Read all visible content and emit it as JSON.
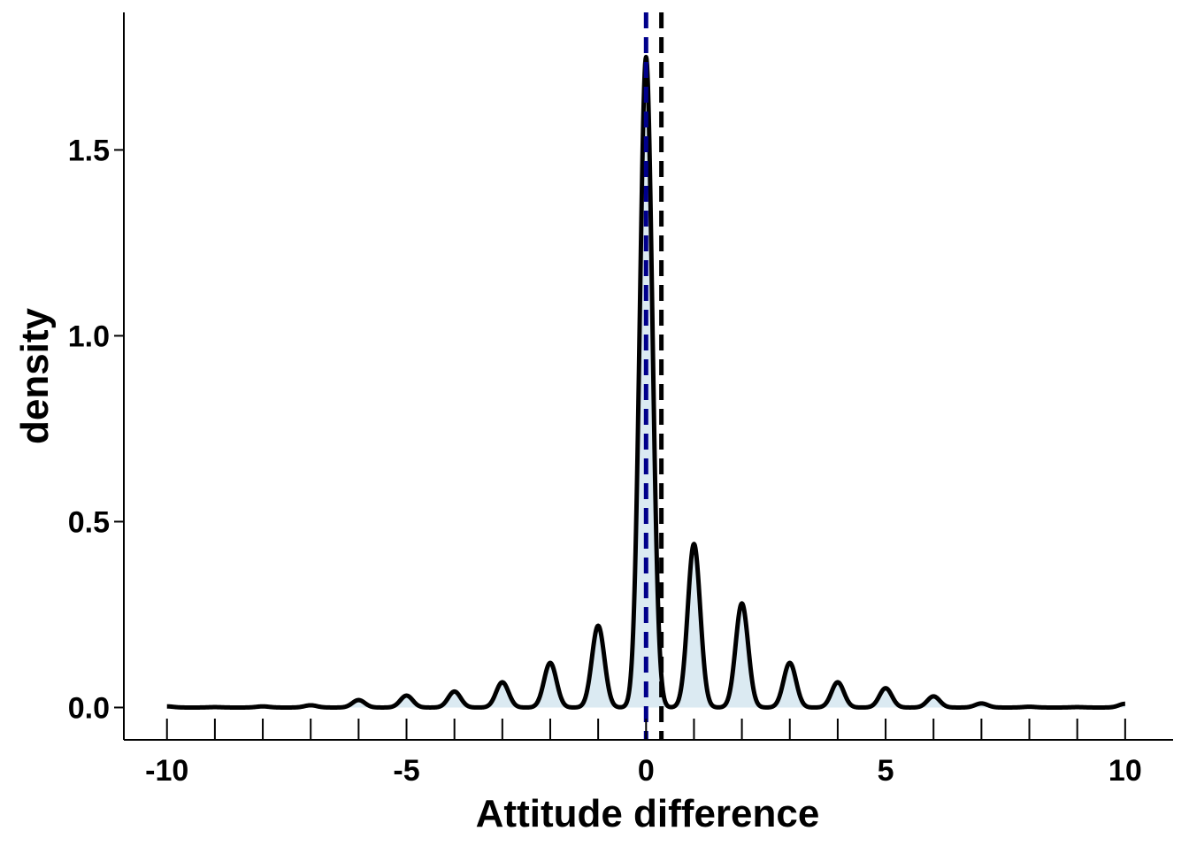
{
  "chart_data": {
    "type": "area",
    "title": "",
    "xlabel": "Attitude difference",
    "ylabel": "density",
    "xlim": [
      -10.9,
      11
    ],
    "ylim": [
      -0.087,
      1.87
    ],
    "x_ticks": [
      -10,
      -5,
      0,
      5,
      10
    ],
    "x_tick_labels": [
      "-10",
      "-5",
      "0",
      "5",
      "10"
    ],
    "x_minor_ticks": [
      -10,
      -9,
      -8,
      -7,
      -6,
      -5,
      -4,
      -3,
      -2,
      -1,
      0,
      1,
      2,
      3,
      4,
      5,
      6,
      7,
      8,
      9,
      10
    ],
    "y_ticks": [
      0.0,
      0.5,
      1.0,
      1.5
    ],
    "y_tick_labels": [
      "0.0",
      "0.5",
      "1.0",
      "1.5"
    ],
    "grid": false,
    "legend": "none",
    "series": [
      {
        "peaks": [
          {
            "x": -10,
            "y": 0.003
          },
          {
            "x": -9,
            "y": 0.001
          },
          {
            "x": -8,
            "y": 0.003
          },
          {
            "x": -7,
            "y": 0.006
          },
          {
            "x": -6,
            "y": 0.02
          },
          {
            "x": -5,
            "y": 0.032
          },
          {
            "x": -4,
            "y": 0.043
          },
          {
            "x": -3,
            "y": 0.068
          },
          {
            "x": -2,
            "y": 0.12
          },
          {
            "x": -1,
            "y": 0.22
          },
          {
            "x": 0,
            "y": 1.75
          },
          {
            "x": 1,
            "y": 0.44
          },
          {
            "x": 2,
            "y": 0.28
          },
          {
            "x": 3,
            "y": 0.12
          },
          {
            "x": 4,
            "y": 0.068
          },
          {
            "x": 5,
            "y": 0.052
          },
          {
            "x": 6,
            "y": 0.03
          },
          {
            "x": 7,
            "y": 0.011
          },
          {
            "x": 8,
            "y": 0.002
          },
          {
            "x": 9,
            "y": 0.001
          },
          {
            "x": 10,
            "y": 0.01
          }
        ],
        "peak_sd": 0.13,
        "x_range": [
          -10,
          10
        ],
        "line_color": "#000000",
        "fill_color": "#dbeaf2"
      }
    ],
    "reference_lines": [
      {
        "x": 0,
        "color": "#00008b",
        "style": "dashed"
      },
      {
        "x": 0.32,
        "color": "#000000",
        "style": "dashed"
      }
    ]
  }
}
